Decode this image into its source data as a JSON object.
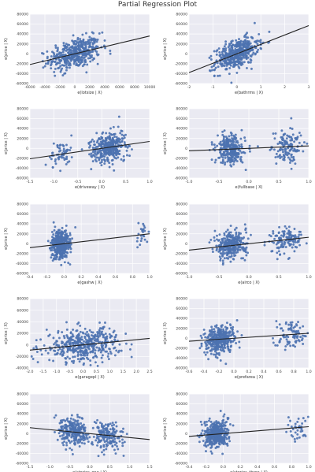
{
  "title": "Partial Regression Plot",
  "colors": {
    "panel_bg": "#eaeaf2",
    "grid": "#ffffff",
    "point": "#4c72b0",
    "line": "#222222"
  },
  "chart_data": [
    {
      "type": "scatter",
      "xlabel": "e(lotsize | X)",
      "ylabel": "e(price | X)",
      "xlim": [
        -6000,
        10000
      ],
      "ylim": [
        -60000,
        80000
      ],
      "xticks": [
        -6000,
        -4000,
        -2000,
        0,
        2000,
        4000,
        6000,
        8000,
        10000
      ],
      "yticks": [
        -60000,
        -40000,
        -20000,
        0,
        20000,
        40000,
        60000,
        80000
      ],
      "n_points": 450,
      "x_spread": 1700,
      "slope": 3.6,
      "resid_sd": 15000,
      "fit_line": {
        "x": [
          -6000,
          10000
        ],
        "y": [
          -21600,
          36000
        ]
      }
    },
    {
      "type": "scatter",
      "xlabel": "e(bathrms | X)",
      "ylabel": "e(price | X)",
      "xlim": [
        -2,
        3
      ],
      "ylim": [
        -60000,
        80000
      ],
      "xticks": [
        -2,
        -1,
        0,
        1,
        2,
        3
      ],
      "yticks": [
        -60000,
        -40000,
        -20000,
        0,
        20000,
        40000,
        60000,
        80000
      ],
      "n_points": 450,
      "x_spread": 0.45,
      "slope": 19000,
      "resid_sd": 14000,
      "fit_line": {
        "x": [
          -2,
          3
        ],
        "y": [
          -38000,
          57000
        ]
      }
    },
    {
      "type": "scatter",
      "xlabel": "e(driveway | X)",
      "ylabel": "e(price | X)",
      "xlim": [
        -1.5,
        1.0
      ],
      "ylim": [
        -60000,
        80000
      ],
      "xticks": [
        -1.5,
        -1.0,
        -0.5,
        0.0,
        0.5,
        1.0
      ],
      "yticks": [
        -60000,
        -40000,
        -20000,
        0,
        20000,
        40000,
        60000,
        80000
      ],
      "clusters": [
        {
          "center": -0.85,
          "sd": 0.12,
          "weight": 0.15
        },
        {
          "center": 0.15,
          "sd": 0.18,
          "weight": 0.85
        }
      ],
      "n_points": 420,
      "slope": 14000,
      "resid_sd": 15000,
      "fit_line": {
        "x": [
          -1.5,
          1.0
        ],
        "y": [
          -21000,
          14000
        ]
      }
    },
    {
      "type": "scatter",
      "xlabel": "e(fullbase | X)",
      "ylabel": "e(price | X)",
      "xlim": [
        -1.0,
        1.0
      ],
      "ylim": [
        -60000,
        80000
      ],
      "xticks": [
        -1.0,
        -0.5,
        0.0,
        0.5,
        1.0
      ],
      "yticks": [
        -60000,
        -40000,
        -20000,
        0,
        20000,
        40000,
        60000,
        80000
      ],
      "clusters": [
        {
          "center": -0.3,
          "sd": 0.12,
          "weight": 0.65
        },
        {
          "center": 0.65,
          "sd": 0.12,
          "weight": 0.35
        }
      ],
      "n_points": 420,
      "slope": 5000,
      "resid_sd": 15000,
      "fit_line": {
        "x": [
          -1.0,
          1.0
        ],
        "y": [
          -5000,
          5000
        ]
      }
    },
    {
      "type": "scatter",
      "xlabel": "e(gashw | X)",
      "ylabel": "e(price | X)",
      "xlim": [
        -0.4,
        1.0
      ],
      "ylim": [
        -60000,
        80000
      ],
      "xticks": [
        -0.4,
        -0.2,
        0.0,
        0.2,
        0.4,
        0.6,
        0.8,
        1.0
      ],
      "yticks": [
        -60000,
        -40000,
        -20000,
        0,
        20000,
        40000,
        60000,
        80000
      ],
      "clusters": [
        {
          "center": -0.05,
          "sd": 0.05,
          "weight": 0.95
        },
        {
          "center": 0.92,
          "sd": 0.04,
          "weight": 0.05
        }
      ],
      "n_points": 440,
      "slope": 20000,
      "resid_sd": 14000,
      "fit_line": {
        "x": [
          -0.4,
          1.0
        ],
        "y": [
          -8000,
          20000
        ]
      }
    },
    {
      "type": "scatter",
      "xlabel": "e(airco | X)",
      "ylabel": "e(price | X)",
      "xlim": [
        -1.0,
        1.0
      ],
      "ylim": [
        -60000,
        80000
      ],
      "xticks": [
        -1.0,
        -0.5,
        0.0,
        0.5,
        1.0
      ],
      "yticks": [
        -60000,
        -40000,
        -20000,
        0,
        20000,
        40000,
        60000,
        80000
      ],
      "clusters": [
        {
          "center": -0.3,
          "sd": 0.13,
          "weight": 0.7
        },
        {
          "center": 0.62,
          "sd": 0.14,
          "weight": 0.3
        }
      ],
      "n_points": 440,
      "slope": 13000,
      "resid_sd": 14000,
      "fit_line": {
        "x": [
          -1.0,
          1.0
        ],
        "y": [
          -13000,
          13000
        ]
      }
    },
    {
      "type": "scatter",
      "xlabel": "e(garagepl | X)",
      "ylabel": "e(price | X)",
      "xlim": [
        -2.0,
        2.5
      ],
      "ylim": [
        -40000,
        80000
      ],
      "xticks": [
        -2.0,
        -1.5,
        -1.0,
        -0.5,
        0.0,
        0.5,
        1.0,
        1.5,
        2.0,
        2.5
      ],
      "yticks": [
        -40000,
        -20000,
        0,
        20000,
        40000,
        60000,
        80000
      ],
      "n_points": 440,
      "x_spread": 0.7,
      "slope": 4500,
      "resid_sd": 14000,
      "fit_line": {
        "x": [
          -2.0,
          2.5
        ],
        "y": [
          -9000,
          11250
        ]
      }
    },
    {
      "type": "scatter",
      "xlabel": "e(prefarea | X)",
      "ylabel": "e(price | X)",
      "xlim": [
        -0.6,
        1.0
      ],
      "ylim": [
        -60000,
        80000
      ],
      "xticks": [
        -0.6,
        -0.4,
        -0.2,
        0.0,
        0.2,
        0.4,
        0.6,
        0.8,
        1.0
      ],
      "yticks": [
        -60000,
        -40000,
        -20000,
        0,
        20000,
        40000,
        60000,
        80000
      ],
      "clusters": [
        {
          "center": -0.2,
          "sd": 0.1,
          "weight": 0.78
        },
        {
          "center": 0.75,
          "sd": 0.1,
          "weight": 0.22
        }
      ],
      "n_points": 440,
      "slope": 10000,
      "resid_sd": 14000,
      "fit_line": {
        "x": [
          -0.6,
          1.0
        ],
        "y": [
          -6000,
          10000
        ]
      }
    },
    {
      "type": "scatter",
      "xlabel": "e(stories_one | X)",
      "ylabel": "e(price | X)",
      "xlim": [
        -1.5,
        1.5
      ],
      "ylim": [
        -60000,
        80000
      ],
      "xticks": [
        -1.5,
        -1.0,
        -0.5,
        0.0,
        0.5,
        1.0,
        1.5
      ],
      "yticks": [
        -60000,
        -40000,
        -20000,
        0,
        20000,
        40000,
        60000,
        80000
      ],
      "clusters": [
        {
          "center": -0.4,
          "sd": 0.18,
          "weight": 0.55
        },
        {
          "center": 0.45,
          "sd": 0.2,
          "weight": 0.45
        }
      ],
      "n_points": 440,
      "slope": -8000,
      "resid_sd": 14000,
      "fit_line": {
        "x": [
          -1.5,
          1.5
        ],
        "y": [
          12000,
          -12000
        ]
      }
    },
    {
      "type": "scatter",
      "xlabel": "e(stories_three | X)",
      "ylabel": "e(price | X)",
      "xlim": [
        -0.4,
        1.0
      ],
      "ylim": [
        -60000,
        80000
      ],
      "xticks": [
        -0.4,
        -0.2,
        0.0,
        0.2,
        0.4,
        0.6,
        0.8,
        1.0
      ],
      "yticks": [
        -60000,
        -40000,
        -20000,
        0,
        20000,
        40000,
        60000,
        80000
      ],
      "clusters": [
        {
          "center": -0.08,
          "sd": 0.07,
          "weight": 0.92
        },
        {
          "center": 0.88,
          "sd": 0.06,
          "weight": 0.08
        }
      ],
      "n_points": 440,
      "slope": 14000,
      "resid_sd": 14000,
      "fit_line": {
        "x": [
          -0.4,
          1.0
        ],
        "y": [
          -5600,
          14000
        ]
      }
    }
  ]
}
